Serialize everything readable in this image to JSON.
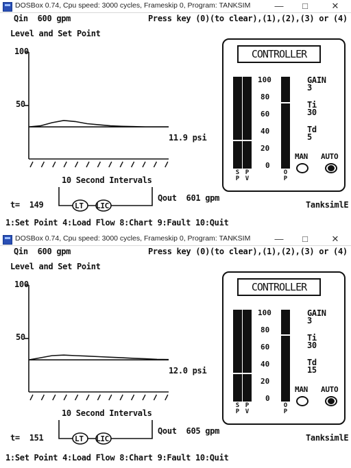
{
  "windows": [
    {
      "title": "DOSBox 0.74, Cpu speed:   3000 cycles, Frameskip  0, Program:  TANKSIM",
      "qin": "Qin  600 gpm",
      "prompt": "Press key (0)(to clear),(1),(2),(3) or (4)",
      "chart_title": "Level and Set Point",
      "y_top": "100",
      "y_mid": "50",
      "pressure": "11.9 psi",
      "intervals": "10 Second Intervals",
      "time": "t=  149",
      "lt": "LT",
      "lic": "LIC",
      "qout": "Qout  601 gpm",
      "brand": "TanksimlE",
      "menu": "1:Set Point 4:Load Flow 8:Chart 9:Fault 10:Quit",
      "controller": {
        "title": "CONTROLLER",
        "scale": [
          "100",
          "80",
          "60",
          "40",
          "20",
          "0"
        ],
        "gain_label": "GAIN",
        "gain": "3",
        "ti_label": "Ti",
        "ti": "30",
        "td_label": "Td",
        "td": "5",
        "man": "MAN",
        "auto": "AUTO",
        "sp": [
          "S",
          "P"
        ],
        "pv": [
          "P",
          "V"
        ],
        "op": [
          "O",
          "P"
        ],
        "setpoint": 30,
        "pv_level": 30,
        "output": 74,
        "mode": "AUTO"
      }
    },
    {
      "title": "DOSBox 0.74, Cpu speed:   3000 cycles, Frameskip  0, Program:  TANKSIM",
      "qin": "Qin  600 gpm",
      "prompt": "Press key (0)(to clear),(1),(2),(3) or (4)",
      "chart_title": "Level and Set Point",
      "y_top": "100",
      "y_mid": "50",
      "pressure": "12.0 psi",
      "intervals": "10 Second Intervals",
      "time": "t=  151",
      "lt": "LT",
      "lic": "LIC",
      "qout": "Qout  605 gpm",
      "brand": "TanksimlE",
      "menu": "1:Set Point 4:Load Flow 8:Chart 9:Fault 10:Quit",
      "controller": {
        "title": "CONTROLLER",
        "scale": [
          "100",
          "80",
          "60",
          "40",
          "20",
          "0"
        ],
        "gain_label": "GAIN",
        "gain": "3",
        "ti_label": "Ti",
        "ti": "30",
        "td_label": "Td",
        "td": "15",
        "man": "MAN",
        "auto": "AUTO",
        "sp": [
          "S",
          "P"
        ],
        "pv": [
          "P",
          "V"
        ],
        "op": [
          "O",
          "P"
        ],
        "setpoint": 30,
        "pv_level": 30,
        "output": 75,
        "mode": "AUTO"
      }
    }
  ],
  "chart_data": [
    {
      "type": "line",
      "title": "Level and Set Point",
      "xlabel": "10 Second Intervals",
      "ylim": [
        0,
        100
      ],
      "ticks": [
        "100",
        "50"
      ],
      "series": [
        {
          "role": "set-point",
          "y": [
            30,
            30,
            30,
            30,
            30,
            30,
            30,
            30,
            30,
            30,
            30,
            30,
            30
          ]
        },
        {
          "role": "level",
          "y": [
            30,
            31,
            34,
            36,
            35,
            33,
            32,
            31,
            30.6,
            30.3,
            30,
            30,
            30
          ]
        }
      ]
    },
    {
      "type": "line",
      "title": "Level and Set Point",
      "xlabel": "10 Second Intervals",
      "ylim": [
        0,
        100
      ],
      "ticks": [
        "100",
        "50"
      ],
      "series": [
        {
          "role": "set-point",
          "y": [
            30,
            30,
            30,
            30,
            30,
            30,
            30,
            30,
            30,
            30,
            30,
            30,
            30
          ]
        },
        {
          "role": "level",
          "y": [
            30,
            32,
            34,
            34.5,
            34,
            33.5,
            33,
            32.5,
            32,
            31.5,
            31,
            30.5,
            30.3
          ]
        }
      ]
    }
  ]
}
